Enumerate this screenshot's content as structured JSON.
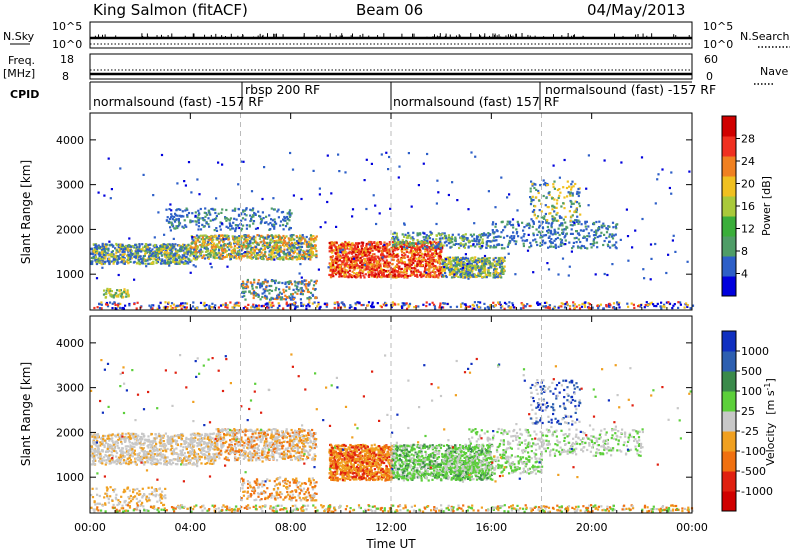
{
  "header": {
    "station": "King Salmon (fitACF)",
    "beam": "Beam 06",
    "date": "04/May/2013"
  },
  "top_panels": {
    "nsky_label": "N.Sky",
    "nsky_ticks": [
      "10^5",
      "10^0"
    ],
    "nsearch_label": "N.Search",
    "nsearch_ticks": [
      "10^5",
      "10^0"
    ],
    "freq_label": "Freq.",
    "freq_unit": "[MHz]",
    "freq_ticks": [
      "18",
      "8"
    ],
    "nave_label": "Nave",
    "nave_ticks": [
      "60",
      "0"
    ],
    "cpid_label": "CPID"
  },
  "cpid_segments": [
    {
      "label": "normalsound (fast) -157 RF",
      "start_hour": 0.0
    },
    {
      "label": "rbsp 200 RF",
      "start_hour": 6.0
    },
    {
      "label": "normalsound (fast) 157 RF",
      "start_hour": 12.0
    },
    {
      "label": "normalsound (fast) -157 RF",
      "start_hour": 18.0
    }
  ],
  "chart_data": [
    {
      "type": "heatmap",
      "name": "power",
      "ylabel": "Slant Range [km]",
      "xlabel": "",
      "xlim": [
        0,
        24
      ],
      "ylim": [
        200,
        4600
      ],
      "yticks": [
        "1000",
        "2000",
        "3000",
        "4000"
      ],
      "colorbar_label": "Power [dB]",
      "colorbar_ticks": [
        "28",
        "24",
        "20",
        "16",
        "12",
        "8",
        "4"
      ],
      "colorbar_colors": [
        "#0000dd",
        "#2d5fc8",
        "#4f9d67",
        "#3aae3a",
        "#a9c93a",
        "#f0c020",
        "#f08020",
        "#f03020",
        "#d00000"
      ],
      "dashed_lines_hours": [
        6,
        12,
        18
      ]
    },
    {
      "type": "heatmap",
      "name": "velocity",
      "ylabel": "Slant Range [km]",
      "xlabel": "Time UT",
      "xlim": [
        0,
        24
      ],
      "ylim": [
        200,
        4600
      ],
      "yticks": [
        "1000",
        "2000",
        "3000",
        "4000"
      ],
      "xticks": [
        "00:00",
        "04:00",
        "08:00",
        "12:00",
        "16:00",
        "20:00",
        "00:00"
      ],
      "colorbar_label": "Velocity",
      "colorbar_unit": "[m s",
      "colorbar_unit_exp": "-1",
      "colorbar_unit_close": "]",
      "colorbar_ticks": [
        "1000",
        "500",
        "100",
        "25",
        "-25",
        "-100",
        "-500",
        "-1000"
      ],
      "colorbar_colors": [
        "#1030c0",
        "#2d5fb0",
        "#3a8a4a",
        "#5ccf3a",
        "#c8c8c8",
        "#f0a020",
        "#f07010",
        "#e02010",
        "#d00000"
      ],
      "dashed_lines_hours": [
        6,
        12,
        18
      ]
    }
  ]
}
